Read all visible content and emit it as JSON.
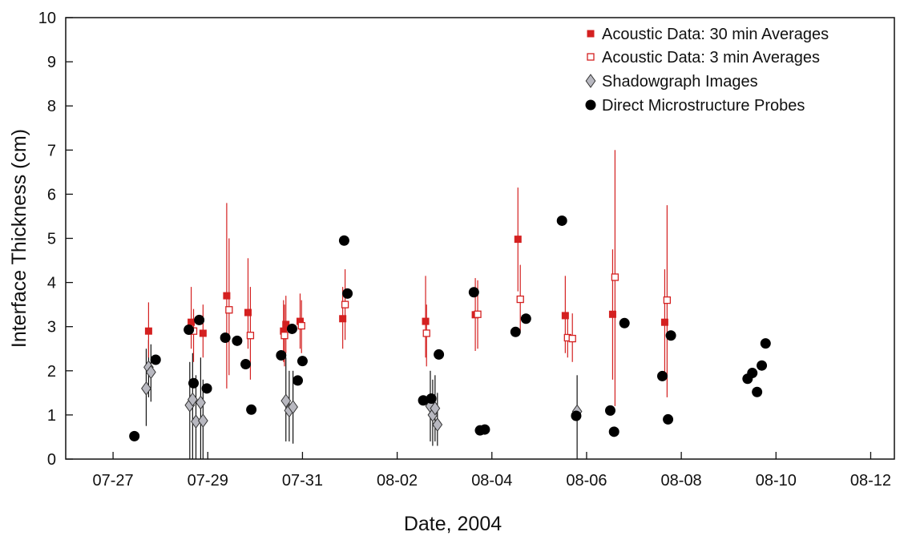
{
  "chart_data": {
    "type": "scatter",
    "title": "",
    "xlabel": "Date, 2004",
    "ylabel": "Interface Thickness (cm)",
    "xlim": [
      "07-26.0",
      "08-12.5"
    ],
    "ylim": [
      0,
      10
    ],
    "xtick_labels": [
      "07-27",
      "07-29",
      "07-31",
      "08-02",
      "08-04",
      "08-06",
      "08-08",
      "08-10",
      "08-12"
    ],
    "ytick_labels": [
      "0",
      "1",
      "2",
      "3",
      "4",
      "5",
      "6",
      "7",
      "8",
      "9",
      "10"
    ],
    "grid": false,
    "legend_position": "top-right",
    "colors": {
      "acoustic": "#d42020",
      "shadowgraph_fill": "#b8b8c0",
      "probe": "#000000"
    },
    "series": [
      {
        "name": "Acoustic Data: 30 min Averages",
        "marker": "filled-square",
        "points": [
          {
            "x": "07-27.75",
            "y": 2.9,
            "lo": 2.3,
            "hi": 3.55
          },
          {
            "x": "07-28.65",
            "y": 3.1,
            "lo": 2.5,
            "hi": 3.9
          },
          {
            "x": "07-28.9",
            "y": 2.85,
            "lo": 2.3,
            "hi": 3.5
          },
          {
            "x": "07-29.4",
            "y": 3.7,
            "lo": 1.6,
            "hi": 5.8
          },
          {
            "x": "07-29.85",
            "y": 3.32,
            "lo": 2.5,
            "hi": 4.55
          },
          {
            "x": "07-30.6",
            "y": 2.9,
            "lo": 2.2,
            "hi": 3.6
          },
          {
            "x": "07-30.65",
            "y": 3.05,
            "lo": 2.4,
            "hi": 3.7
          },
          {
            "x": "07-30.95",
            "y": 3.12,
            "lo": 2.5,
            "hi": 3.75
          },
          {
            "x": "07-31.85",
            "y": 3.18,
            "lo": 2.5,
            "hi": 3.9
          },
          {
            "x": "08-02.6",
            "y": 3.12,
            "lo": 2.3,
            "hi": 4.15
          },
          {
            "x": "08-03.65",
            "y": 3.27,
            "lo": 2.45,
            "hi": 4.1
          },
          {
            "x": "08-04.55",
            "y": 4.98,
            "lo": 3.8,
            "hi": 6.15
          },
          {
            "x": "08-05.55",
            "y": 3.25,
            "lo": 2.4,
            "hi": 4.15
          },
          {
            "x": "08-06.55",
            "y": 3.28,
            "lo": 1.8,
            "hi": 4.75
          },
          {
            "x": "08-07.65",
            "y": 3.1,
            "lo": 1.9,
            "hi": 4.3
          }
        ]
      },
      {
        "name": "Acoustic Data: 3 min Averages",
        "marker": "open-square",
        "points": [
          {
            "x": "07-28.7",
            "y": 2.9,
            "lo": 2.2,
            "hi": 3.4
          },
          {
            "x": "07-29.45",
            "y": 3.38,
            "lo": 1.9,
            "hi": 5.0
          },
          {
            "x": "07-29.9",
            "y": 2.8,
            "lo": 1.8,
            "hi": 3.9
          },
          {
            "x": "07-30.62",
            "y": 2.8,
            "lo": 2.1,
            "hi": 3.5
          },
          {
            "x": "07-30.98",
            "y": 3.02,
            "lo": 2.4,
            "hi": 3.6
          },
          {
            "x": "07-31.9",
            "y": 3.5,
            "lo": 2.7,
            "hi": 4.3
          },
          {
            "x": "08-02.62",
            "y": 2.85,
            "lo": 2.1,
            "hi": 3.5
          },
          {
            "x": "08-03.7",
            "y": 3.28,
            "lo": 2.5,
            "hi": 4.05
          },
          {
            "x": "08-04.6",
            "y": 3.62,
            "lo": 2.9,
            "hi": 4.4
          },
          {
            "x": "08-05.6",
            "y": 2.75,
            "lo": 2.3,
            "hi": 3.3
          },
          {
            "x": "08-05.7",
            "y": 2.73,
            "lo": 2.2,
            "hi": 3.3
          },
          {
            "x": "08-06.6",
            "y": 4.12,
            "lo": 1.2,
            "hi": 7.0
          },
          {
            "x": "08-07.7",
            "y": 3.6,
            "lo": 1.4,
            "hi": 5.75
          }
        ]
      },
      {
        "name": "Shadowgraph Images",
        "marker": "diamond",
        "points": [
          {
            "x": "07-27.7",
            "y": 1.6,
            "lo": 0.75,
            "hi": 2.5
          },
          {
            "x": "07-27.75",
            "y": 2.08,
            "lo": 1.4,
            "hi": 2.7
          },
          {
            "x": "07-27.8",
            "y": 1.97,
            "lo": 1.3,
            "hi": 2.6
          },
          {
            "x": "07-28.62",
            "y": 1.22,
            "lo": 0.0,
            "hi": 2.2
          },
          {
            "x": "07-28.68",
            "y": 1.35,
            "lo": 0.0,
            "hi": 2.4
          },
          {
            "x": "07-28.75",
            "y": 0.85,
            "lo": 0.0,
            "hi": 1.9
          },
          {
            "x": "07-28.85",
            "y": 1.28,
            "lo": 0.0,
            "hi": 2.3
          },
          {
            "x": "07-28.9",
            "y": 0.87,
            "lo": 0.0,
            "hi": 1.8
          },
          {
            "x": "07-30.65",
            "y": 1.32,
            "lo": 0.4,
            "hi": 2.3
          },
          {
            "x": "07-30.72",
            "y": 1.1,
            "lo": 0.4,
            "hi": 2.0
          },
          {
            "x": "07-30.8",
            "y": 1.18,
            "lo": 0.35,
            "hi": 2.0
          },
          {
            "x": "08-02.7",
            "y": 1.2,
            "lo": 0.4,
            "hi": 2.0
          },
          {
            "x": "08-02.75",
            "y": 1.0,
            "lo": 0.3,
            "hi": 1.8
          },
          {
            "x": "08-02.8",
            "y": 1.15,
            "lo": 0.4,
            "hi": 1.9
          },
          {
            "x": "08-02.85",
            "y": 0.78,
            "lo": 0.3,
            "hi": 1.5
          },
          {
            "x": "08-05.8",
            "y": 1.08,
            "lo": 0.0,
            "hi": 1.9
          }
        ]
      },
      {
        "name": "Direct Microstructure Probes",
        "marker": "filled-circle",
        "points": [
          {
            "x": "07-27.45",
            "y": 0.52
          },
          {
            "x": "07-27.9",
            "y": 2.25
          },
          {
            "x": "07-28.6",
            "y": 2.93
          },
          {
            "x": "07-28.7",
            "y": 1.72
          },
          {
            "x": "07-28.82",
            "y": 3.15
          },
          {
            "x": "07-28.98",
            "y": 1.6
          },
          {
            "x": "07-29.37",
            "y": 2.75
          },
          {
            "x": "07-29.62",
            "y": 2.68
          },
          {
            "x": "07-29.8",
            "y": 2.15
          },
          {
            "x": "07-29.92",
            "y": 1.12
          },
          {
            "x": "07-30.55",
            "y": 2.35
          },
          {
            "x": "07-30.78",
            "y": 2.95
          },
          {
            "x": "07-30.9",
            "y": 1.78
          },
          {
            "x": "07-31.0",
            "y": 2.22
          },
          {
            "x": "07-31.88",
            "y": 4.95
          },
          {
            "x": "07-31.95",
            "y": 3.75
          },
          {
            "x": "08-02.55",
            "y": 1.33
          },
          {
            "x": "08-02.72",
            "y": 1.37
          },
          {
            "x": "08-02.88",
            "y": 2.37
          },
          {
            "x": "08-03.62",
            "y": 3.78
          },
          {
            "x": "08-03.75",
            "y": 0.65
          },
          {
            "x": "08-03.85",
            "y": 0.67
          },
          {
            "x": "08-04.5",
            "y": 2.88
          },
          {
            "x": "08-04.72",
            "y": 3.18
          },
          {
            "x": "08-05.48",
            "y": 5.4
          },
          {
            "x": "08-05.78",
            "y": 0.98
          },
          {
            "x": "08-06.5",
            "y": 1.1
          },
          {
            "x": "08-06.58",
            "y": 0.62
          },
          {
            "x": "08-06.8",
            "y": 3.08
          },
          {
            "x": "08-07.6",
            "y": 1.88
          },
          {
            "x": "08-07.72",
            "y": 0.9
          },
          {
            "x": "08-07.78",
            "y": 2.8
          },
          {
            "x": "08-09.4",
            "y": 1.82
          },
          {
            "x": "08-09.5",
            "y": 1.95
          },
          {
            "x": "08-09.6",
            "y": 1.52
          },
          {
            "x": "08-09.7",
            "y": 2.12
          },
          {
            "x": "08-09.78",
            "y": 2.62
          }
        ]
      }
    ]
  }
}
